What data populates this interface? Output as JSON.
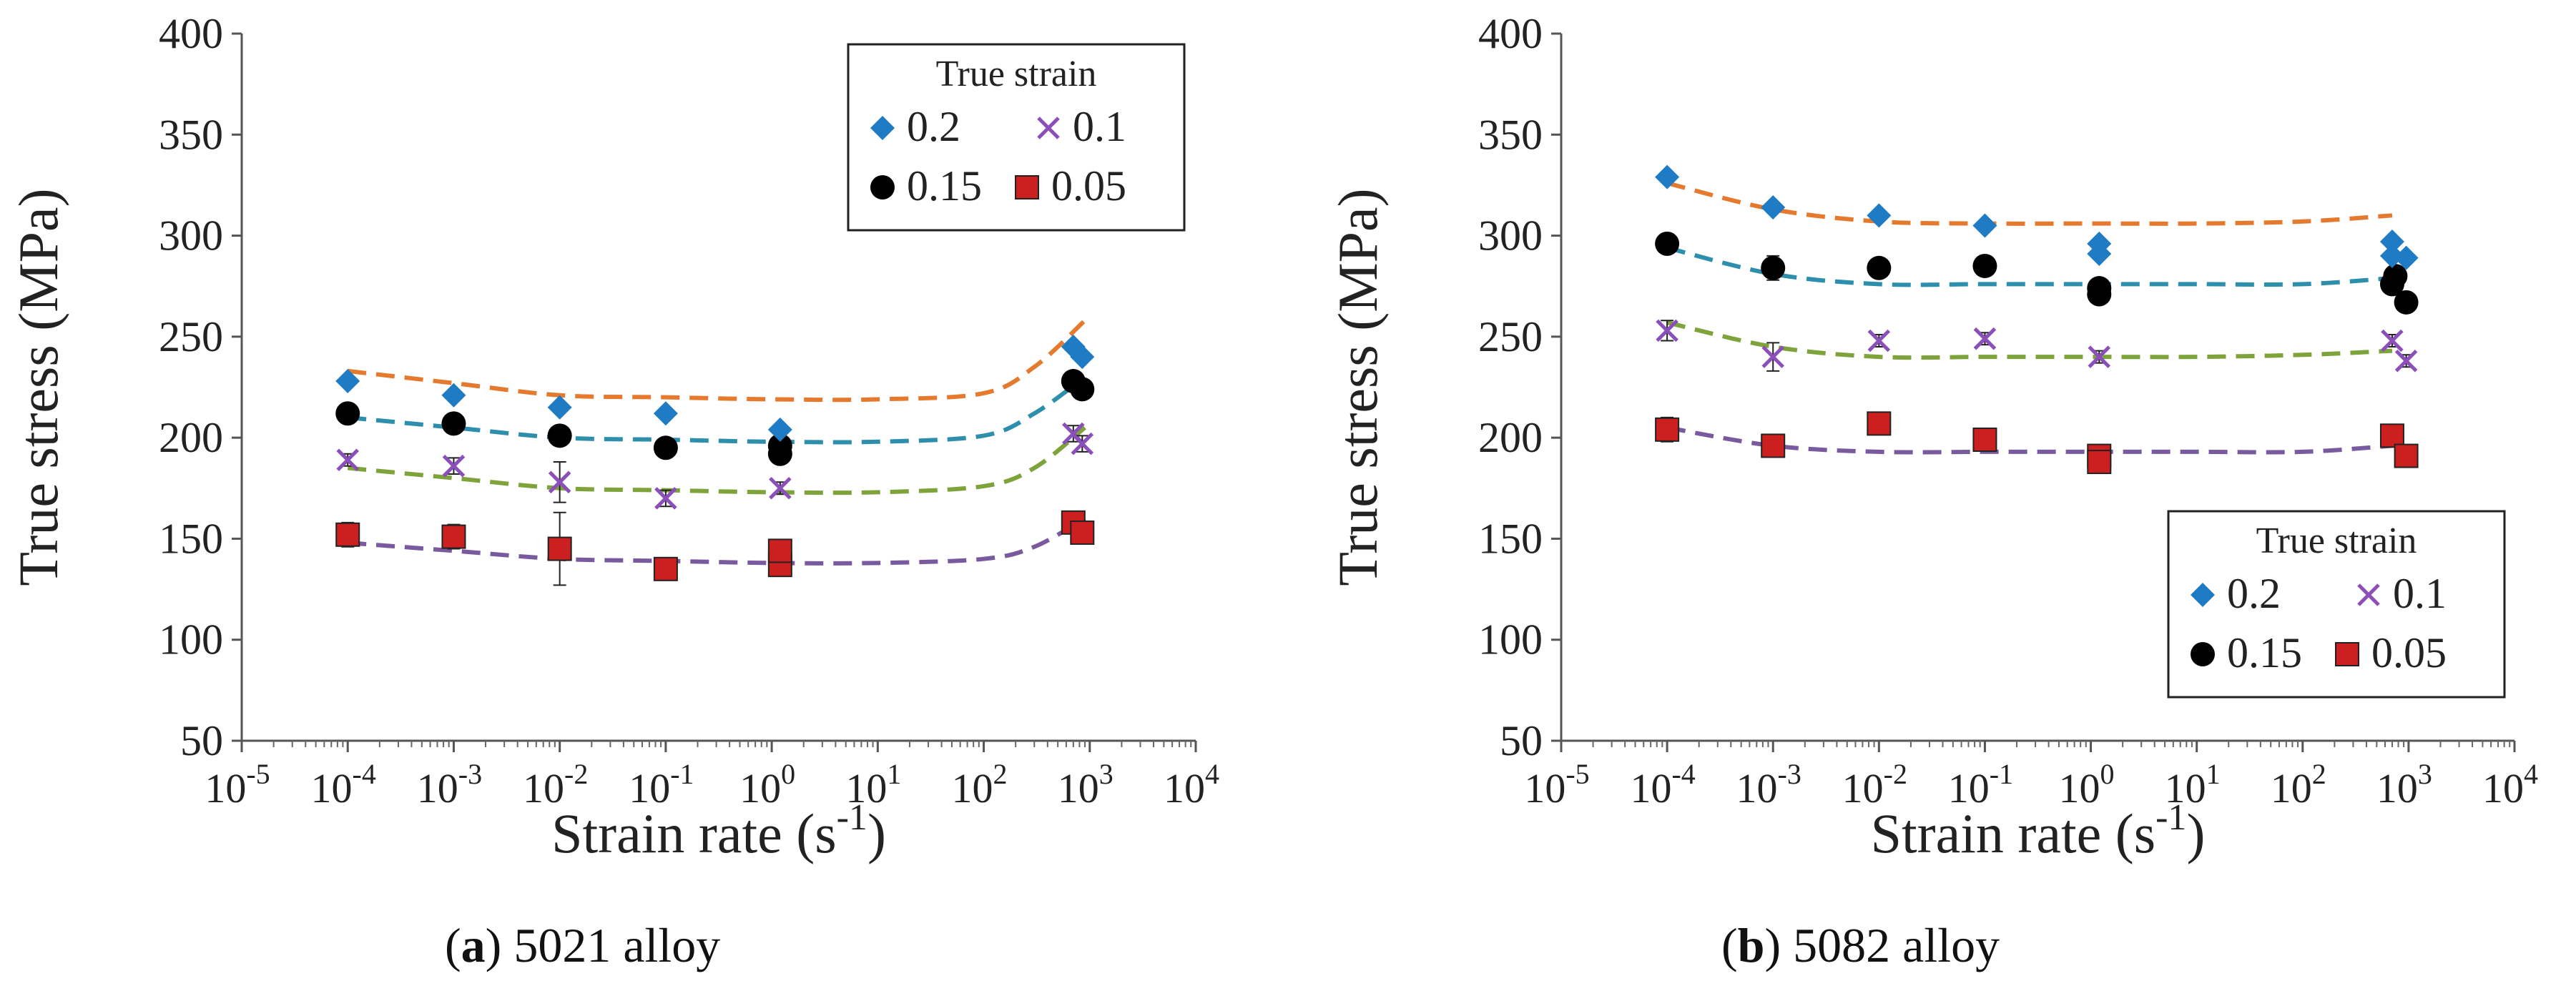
{
  "figure": {
    "caption_a": {
      "letter": "a",
      "text": "5021 alloy"
    },
    "caption_b": {
      "letter": "b",
      "text": "5082 alloy"
    }
  },
  "colors": {
    "marker_02": "#1f7bc4",
    "marker_01": "#8a4fb8",
    "marker_015": "#000000",
    "marker_005": "#cc1f1f",
    "fit_02": "#e57a2e",
    "fit_015": "#2d8fab",
    "fit_01": "#7fa33b",
    "fit_005": "#7a5a9e"
  },
  "chart_data": [
    {
      "type": "scatter",
      "panel": "a",
      "xlabel": "Strain rate (s-1)",
      "ylabel": "True  stress (MPa)",
      "xscale": "log",
      "xlim_exp": [
        -5,
        4
      ],
      "ylim": [
        50,
        400
      ],
      "yticks": [
        50,
        100,
        150,
        200,
        250,
        300,
        350,
        400
      ],
      "legend": {
        "title": "True strain",
        "position": "top-right",
        "labels": [
          "0.2",
          "0.1",
          "0.15",
          "0.05"
        ]
      },
      "series": [
        {
          "name": "0.2",
          "marker": "diamond",
          "points": [
            [
              0.0001,
              228
            ],
            [
              0.001,
              221
            ],
            [
              0.01,
              215
            ],
            [
              0.1,
              212
            ],
            [
              1.2,
              204
            ],
            [
              700,
              245
            ],
            [
              850,
              240
            ]
          ]
        },
        {
          "name": "0.15",
          "marker": "circle",
          "points": [
            [
              0.0001,
              212
            ],
            [
              0.001,
              207
            ],
            [
              0.01,
              201
            ],
            [
              0.1,
              195
            ],
            [
              1.2,
              192
            ],
            [
              1.2,
              196
            ],
            [
              700,
              228
            ],
            [
              850,
              224
            ]
          ]
        },
        {
          "name": "0.1",
          "marker": "cross",
          "points": [
            [
              0.0001,
              189
            ],
            [
              0.001,
              186
            ],
            [
              0.01,
              178
            ],
            [
              0.1,
              170
            ],
            [
              1.2,
              175
            ],
            [
              700,
              202
            ],
            [
              850,
              197
            ]
          ],
          "errors": [
            3,
            4,
            10,
            4,
            3,
            4,
            4
          ]
        },
        {
          "name": "0.05",
          "marker": "square",
          "points": [
            [
              0.0001,
              152
            ],
            [
              0.001,
              151
            ],
            [
              0.01,
              145
            ],
            [
              0.1,
              135
            ],
            [
              1.2,
              137
            ],
            [
              1.2,
              144
            ],
            [
              700,
              158
            ],
            [
              850,
              153
            ]
          ],
          "errors": [
            6,
            6,
            18,
            4,
            4,
            4,
            4,
            4
          ]
        }
      ],
      "fits": [
        {
          "name": "fit-0.2",
          "points": [
            [
              0.0001,
              233
            ],
            [
              0.001,
              227
            ],
            [
              0.01,
              221
            ],
            [
              0.1,
              220
            ],
            [
              1,
              219
            ],
            [
              10,
              219
            ],
            [
              100,
              222
            ],
            [
              300,
              235
            ],
            [
              900,
              258
            ]
          ]
        },
        {
          "name": "fit-0.15",
          "points": [
            [
              0.0001,
              210
            ],
            [
              0.001,
              205
            ],
            [
              0.01,
              200
            ],
            [
              0.1,
              199
            ],
            [
              1,
              198
            ],
            [
              10,
              198
            ],
            [
              100,
              201
            ],
            [
              300,
              212
            ],
            [
              900,
              230
            ]
          ]
        },
        {
          "name": "fit-0.1",
          "points": [
            [
              0.0001,
              185
            ],
            [
              0.001,
              180
            ],
            [
              0.01,
              175
            ],
            [
              0.1,
              174
            ],
            [
              1,
              173
            ],
            [
              10,
              173
            ],
            [
              100,
              176
            ],
            [
              300,
              185
            ],
            [
              900,
              205
            ]
          ]
        },
        {
          "name": "fit-0.05",
          "points": [
            [
              0.0001,
              148
            ],
            [
              0.001,
              144
            ],
            [
              0.01,
              140
            ],
            [
              0.1,
              139
            ],
            [
              1,
              138
            ],
            [
              10,
              138
            ],
            [
              100,
              140
            ],
            [
              300,
              146
            ],
            [
              900,
              160
            ]
          ]
        }
      ]
    },
    {
      "type": "scatter",
      "panel": "b",
      "xlabel": "Strain rate (s-1)",
      "ylabel": "True  stress (MPa)",
      "xscale": "log",
      "xlim_exp": [
        -5,
        4
      ],
      "ylim": [
        50,
        400
      ],
      "yticks": [
        50,
        100,
        150,
        200,
        250,
        300,
        350,
        400
      ],
      "legend": {
        "title": "True strain",
        "position": "bottom-right",
        "labels": [
          "0.2",
          "0.1",
          "0.15",
          "0.05"
        ]
      },
      "series": [
        {
          "name": "0.2",
          "marker": "diamond",
          "points": [
            [
              0.0001,
              329
            ],
            [
              0.001,
              314
            ],
            [
              0.01,
              310
            ],
            [
              0.1,
              305
            ],
            [
              1.2,
              296
            ],
            [
              1.2,
              291
            ],
            [
              700,
              297
            ],
            [
              700,
              290
            ],
            [
              950,
              289
            ]
          ]
        },
        {
          "name": "0.15",
          "marker": "circle",
          "points": [
            [
              0.0001,
              296
            ],
            [
              0.001,
              284
            ],
            [
              0.01,
              284
            ],
            [
              0.1,
              285
            ],
            [
              1.2,
              274
            ],
            [
              1.2,
              271
            ],
            [
              700,
              276
            ],
            [
              750,
              280
            ],
            [
              950,
              267
            ]
          ],
          "errors": [
            3,
            6,
            3,
            3,
            3,
            3,
            3,
            3,
            3
          ]
        },
        {
          "name": "0.1",
          "marker": "cross",
          "points": [
            [
              0.0001,
              253
            ],
            [
              0.001,
              240
            ],
            [
              0.01,
              248
            ],
            [
              0.1,
              249
            ],
            [
              1.2,
              240
            ],
            [
              700,
              248
            ],
            [
              950,
              238
            ]
          ],
          "errors": [
            5,
            7,
            3,
            3,
            3,
            3,
            3
          ]
        },
        {
          "name": "0.05",
          "marker": "square",
          "points": [
            [
              0.0001,
              204
            ],
            [
              0.001,
              196
            ],
            [
              0.01,
              207
            ],
            [
              0.1,
              199
            ],
            [
              1.2,
              191
            ],
            [
              1.2,
              188
            ],
            [
              700,
              201
            ],
            [
              950,
              191
            ]
          ],
          "errors": [
            6,
            3,
            4,
            3,
            3,
            3,
            3,
            3
          ]
        }
      ],
      "fits": [
        {
          "name": "fit-0.2",
          "points": [
            [
              0.0001,
              326
            ],
            [
              0.001,
              313
            ],
            [
              0.01,
              307
            ],
            [
              0.1,
              306
            ],
            [
              1,
              306
            ],
            [
              10,
              306
            ],
            [
              100,
              307
            ],
            [
              700,
              310
            ]
          ]
        },
        {
          "name": "fit-0.15",
          "points": [
            [
              0.0001,
              294
            ],
            [
              0.001,
              281
            ],
            [
              0.01,
              276
            ],
            [
              0.1,
              276
            ],
            [
              1,
              276
            ],
            [
              10,
              276
            ],
            [
              100,
              276
            ],
            [
              700,
              279
            ]
          ]
        },
        {
          "name": "fit-0.1",
          "points": [
            [
              0.0001,
              257
            ],
            [
              0.001,
              245
            ],
            [
              0.01,
              240
            ],
            [
              0.1,
              240
            ],
            [
              1,
              240
            ],
            [
              10,
              240
            ],
            [
              100,
              241
            ],
            [
              700,
              243
            ]
          ]
        },
        {
          "name": "fit-0.05",
          "points": [
            [
              0.0001,
              205
            ],
            [
              0.001,
              196
            ],
            [
              0.01,
              193
            ],
            [
              0.1,
              193
            ],
            [
              1,
              193
            ],
            [
              10,
              193
            ],
            [
              100,
              193
            ],
            [
              700,
              196
            ]
          ]
        }
      ]
    }
  ]
}
